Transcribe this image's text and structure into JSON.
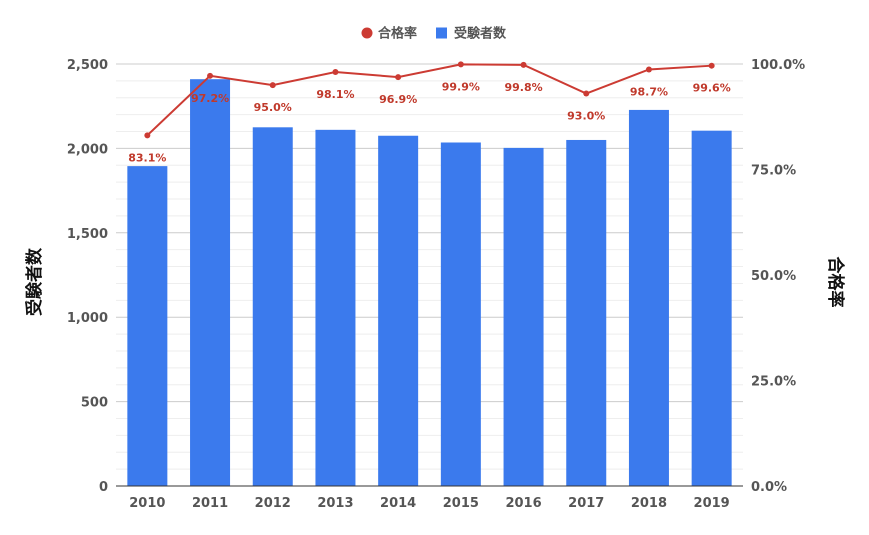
{
  "chart_data": {
    "type": "bar+line",
    "categories": [
      "2010",
      "2011",
      "2012",
      "2013",
      "2014",
      "2015",
      "2016",
      "2017",
      "2018",
      "2019"
    ],
    "series": [
      {
        "name": "受験者数",
        "type": "bar",
        "axis": "left",
        "color": "#3B7AED",
        "values": [
          1895,
          2410,
          2125,
          2110,
          2075,
          2035,
          2003,
          2050,
          2228,
          2105
        ]
      },
      {
        "name": "合格率",
        "type": "line",
        "axis": "right",
        "color": "#CC3B33",
        "values": [
          83.1,
          97.2,
          95.0,
          98.1,
          96.9,
          99.9,
          99.8,
          93.0,
          98.7,
          99.6
        ],
        "labels": [
          "83.1%",
          "97.2%",
          "95.0%",
          "98.1%",
          "96.9%",
          "99.9%",
          "99.8%",
          "93.0%",
          "98.7%",
          "99.6%"
        ]
      }
    ],
    "y_left": {
      "label": "受験者数",
      "ylim": [
        0,
        2500
      ],
      "ticks": [
        0,
        500,
        1000,
        1500,
        2000,
        2500
      ],
      "tick_labels": [
        "0",
        "500",
        "1,000",
        "1,500",
        "2,000",
        "2,500"
      ]
    },
    "y_right": {
      "label": "合格率",
      "ylim": [
        0,
        100
      ],
      "ticks": [
        0,
        25,
        50,
        75,
        100
      ],
      "tick_labels": [
        "0.0%",
        "25.0%",
        "50.0%",
        "75.0%",
        "100.0%"
      ]
    },
    "legend": {
      "placement": "top-center",
      "items": [
        {
          "name": "合格率",
          "marker": "circle",
          "color": "#CC3B33"
        },
        {
          "name": "受験者数",
          "marker": "square",
          "color": "#3B7AED"
        }
      ]
    },
    "grid": true
  }
}
